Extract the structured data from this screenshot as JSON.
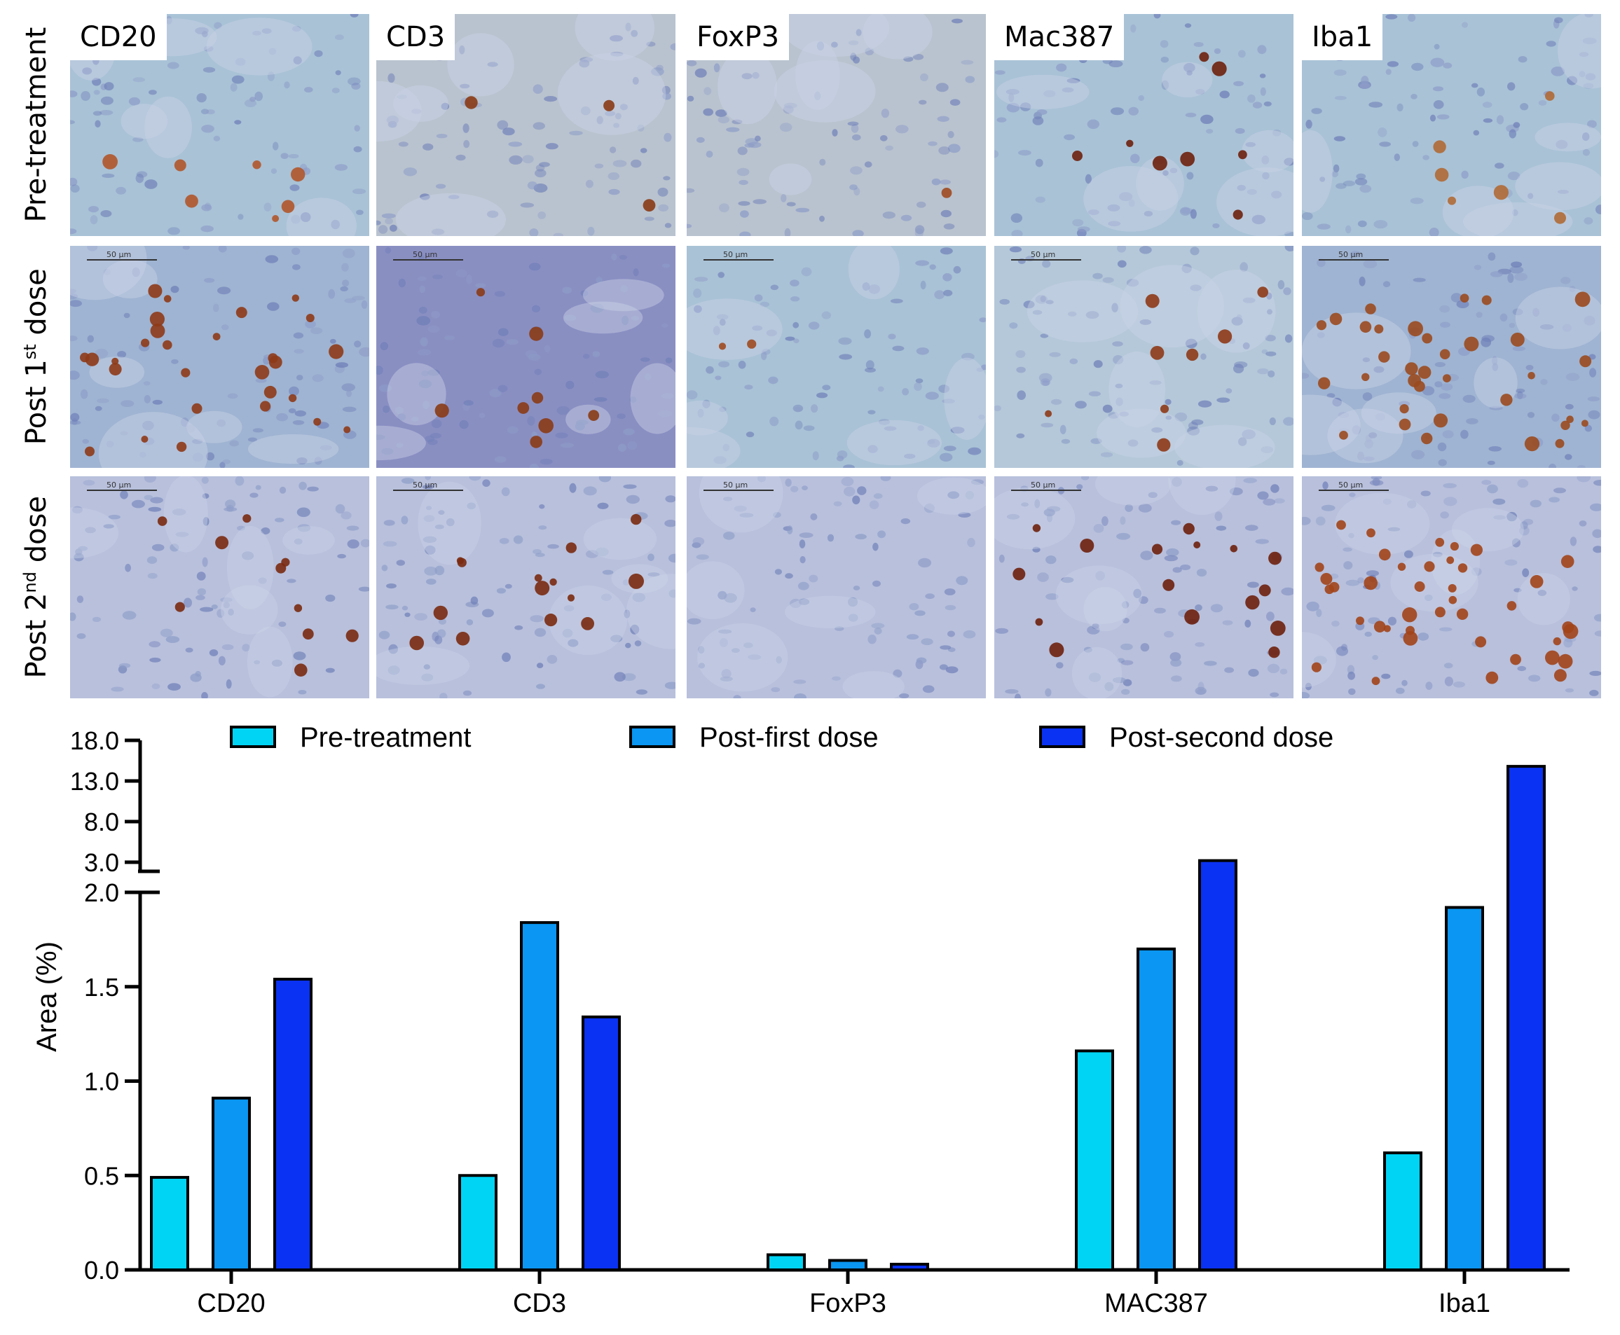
{
  "micrograph_grid": {
    "columns": [
      {
        "label": "CD20",
        "cells": [
          {
            "tone": "light",
            "dots": 7,
            "brown": "#b0562b"
          },
          {
            "tone": "med",
            "dots": 28,
            "brown": "#8e3a17"
          },
          {
            "tone": "pale",
            "dots": 10,
            "brown": "#7a2a10"
          }
        ]
      },
      {
        "label": "CD3",
        "cells": [
          {
            "tone": "beige",
            "dots": 3,
            "brown": "#8a3b15"
          },
          {
            "tone": "purple",
            "dots": 8,
            "brown": "#8a3b15"
          },
          {
            "tone": "pale",
            "dots": 14,
            "brown": "#7a2a10"
          }
        ]
      },
      {
        "label": "FoxP3",
        "cells": [
          {
            "tone": "beige",
            "dots": 1,
            "brown": "#a04a20"
          },
          {
            "tone": "light",
            "dots": 2,
            "brown": "#a04a20"
          },
          {
            "tone": "pale",
            "dots": 0,
            "brown": "#7a2a10"
          }
        ]
      },
      {
        "label": "Mac387",
        "cells": [
          {
            "tone": "light",
            "dots": 8,
            "brown": "#6e200c"
          },
          {
            "tone": "lightwhite",
            "dots": 8,
            "brown": "#8e3a17"
          },
          {
            "tone": "pale",
            "dots": 16,
            "brown": "#6e200c"
          }
        ]
      },
      {
        "label": "Iba1",
        "cells": [
          {
            "tone": "light",
            "dots": 6,
            "brown": "#b06a35"
          },
          {
            "tone": "med",
            "dots": 34,
            "brown": "#9a4a1e"
          },
          {
            "tone": "pale",
            "dots": 40,
            "brown": "#a2441a"
          }
        ]
      }
    ],
    "rows": [
      {
        "label": "Pre-treatment",
        "sup": ""
      },
      {
        "label_pre": "Post 1",
        "sup": "st",
        "label_post": " dose"
      },
      {
        "label_pre": "Post 2",
        "sup": "nd",
        "label_post": " dose"
      }
    ],
    "scale_bar": "50 µm",
    "tone_colors": {
      "light": "#a9c2d6",
      "med": "#9fb4d2",
      "pale": "#b8c0dc",
      "beige": "#b9c3cf",
      "purple": "#8a8fc2",
      "lightwhite": "#b4c8d9"
    }
  },
  "chart_data": {
    "type": "bar",
    "categories": [
      "CD20",
      "CD3",
      "FoxP3",
      "MAC387",
      "Iba1"
    ],
    "series": [
      {
        "name": "Pre-treatment",
        "color": "#00d4f5",
        "values": [
          0.49,
          0.5,
          0.08,
          1.16,
          0.62
        ]
      },
      {
        "name": "Post-first dose",
        "color": "#0a96f2",
        "values": [
          0.91,
          1.84,
          0.05,
          1.7,
          1.92
        ]
      },
      {
        "name": "Post-second dose",
        "color": "#0a32f2",
        "values": [
          1.54,
          1.34,
          0.03,
          3.2,
          14.8
        ]
      }
    ],
    "ylabel": "Area (%)",
    "xlabel": "",
    "y_axis": {
      "broken": true,
      "lower_range": [
        0,
        2.0
      ],
      "lower_ticks": [
        "0.0",
        "0.5",
        "1.0",
        "1.5",
        "2.0"
      ],
      "upper_range": [
        3.0,
        18.0
      ],
      "upper_ticks": [
        "3.0",
        "8.0",
        "13.0",
        "18.0"
      ]
    },
    "legend_position": "top",
    "grid": false
  }
}
